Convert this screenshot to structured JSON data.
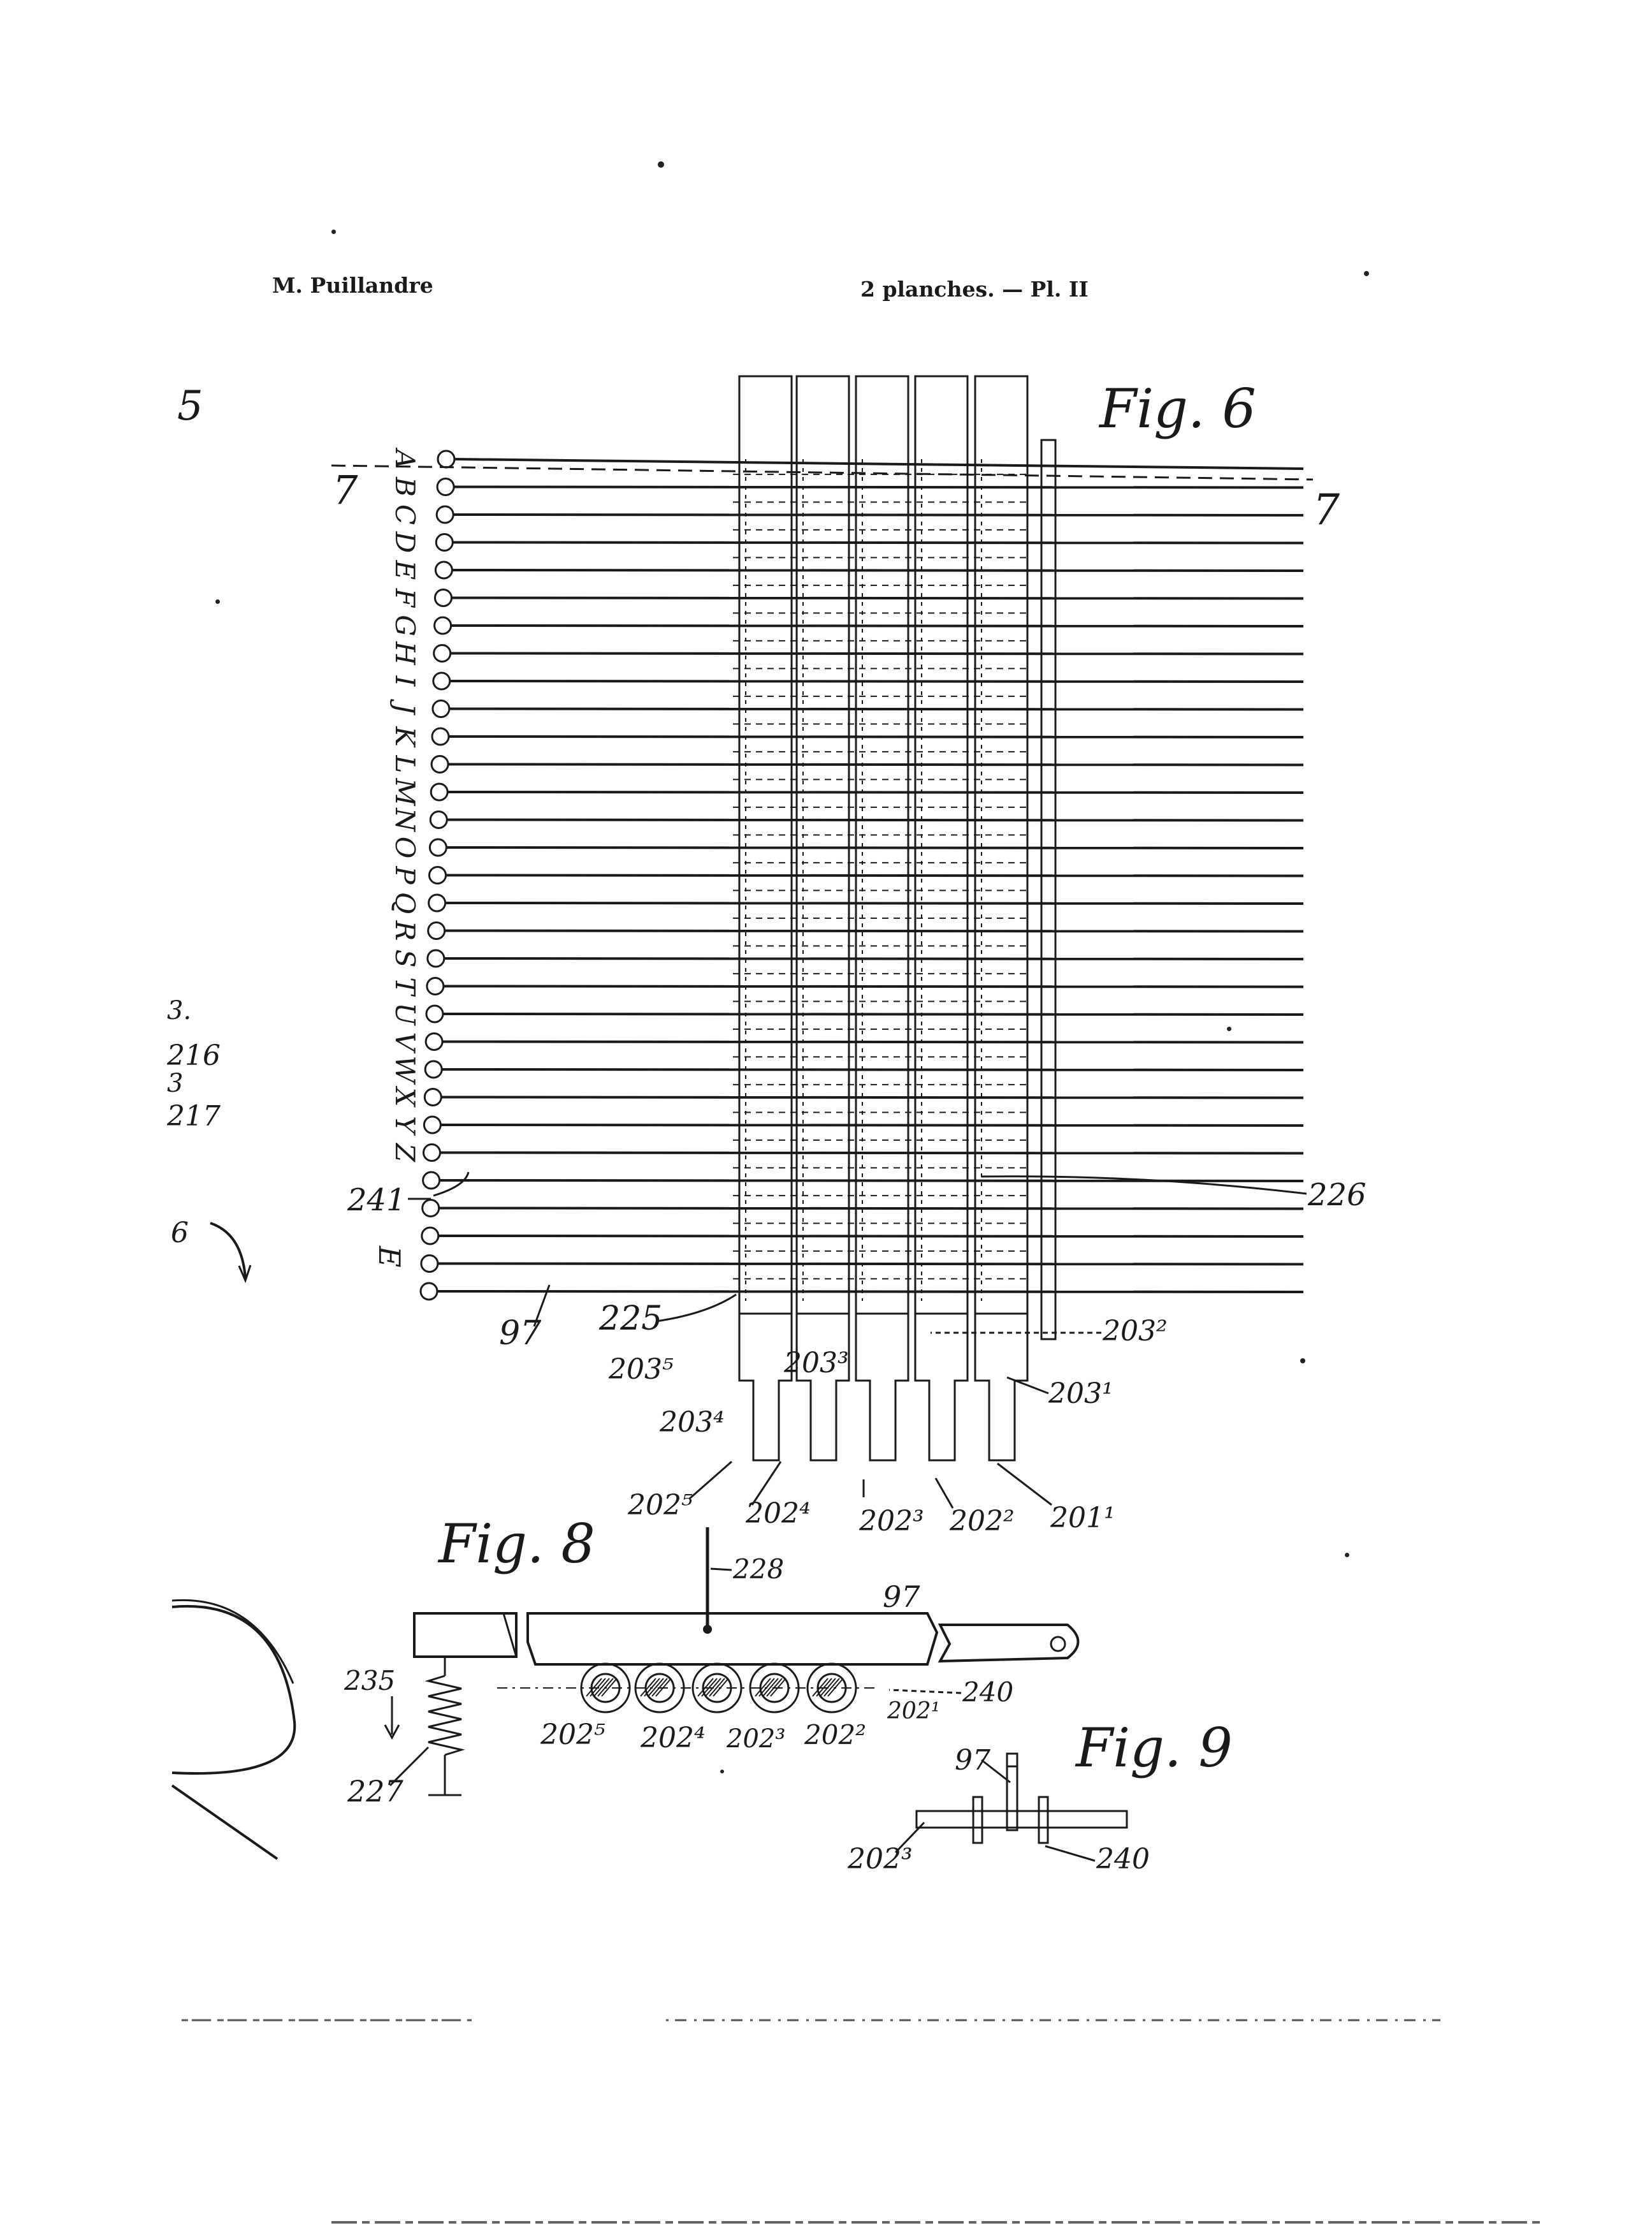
{
  "header": {
    "author": "M. Puillandre",
    "plates": "2 planches. — Pl. II"
  },
  "margin_marks": {
    "left_number": "5",
    "left_fragments": [
      "3.",
      "216",
      "3",
      "217",
      "6"
    ]
  },
  "fig6": {
    "title": "Fig. 6",
    "letters": [
      "A",
      "B",
      "C",
      "D",
      "E",
      "F",
      "G",
      "H",
      "I",
      "J",
      "K",
      "L",
      "M",
      "N",
      "O",
      "P",
      "Q",
      "R",
      "S",
      "T",
      "U",
      "V",
      "W",
      "X",
      "Y",
      "Z"
    ],
    "extra_row_label": "241",
    "bottom_letter": "E",
    "section_mark_left": "7",
    "section_mark_right": "7",
    "labels": {
      "l226": "226",
      "l225": "225",
      "l97": "97",
      "l203_5": "203⁵",
      "l203_3": "203³",
      "l203_4": "203⁴",
      "l203_2": "203²",
      "l203_1": "203¹",
      "l202_5": "202⁵",
      "l202_4": "202⁴",
      "l202_3": "202³",
      "l202_2": "202²",
      "l201_1": "201¹"
    }
  },
  "fig8": {
    "title": "Fig. 8",
    "labels": {
      "l228": "228",
      "l97": "97",
      "l235": "235",
      "l227": "227",
      "l240": "240",
      "l202_5": "202⁵",
      "l202_4": "202⁴",
      "l202_3": "202³",
      "l202_2": "202²",
      "l202_1": "202¹"
    }
  },
  "fig9": {
    "title": "Fig. 9",
    "labels": {
      "l97": "97",
      "l202_3": "202³",
      "l240": "240"
    }
  }
}
